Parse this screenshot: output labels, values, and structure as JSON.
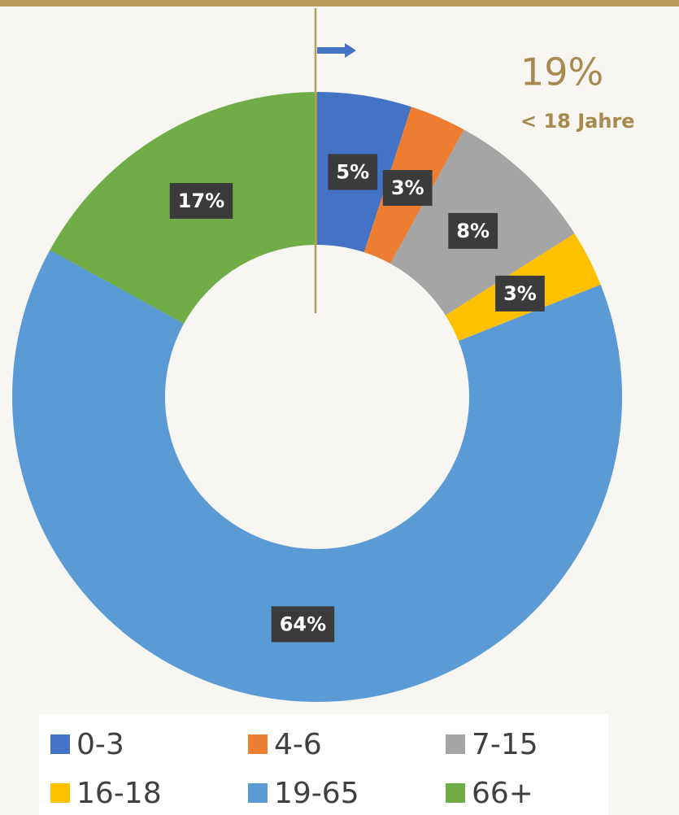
{
  "chart_data": {
    "type": "donut",
    "categories": [
      "0-3",
      "4-6",
      "7-15",
      "16-18",
      "19-65",
      "66+"
    ],
    "values": [
      5,
      3,
      8,
      3,
      64,
      17
    ],
    "value_labels": [
      "5%",
      "3%",
      "8%",
      "3%",
      "64%",
      "17%"
    ],
    "colors": [
      "#4472c4",
      "#ed7d31",
      "#a5a5a5",
      "#ffc000",
      "#5b9bd5",
      "#70ad47"
    ],
    "annotations": [
      "19%",
      "< 18 Jahre"
    ],
    "legend": "bottom"
  }
}
